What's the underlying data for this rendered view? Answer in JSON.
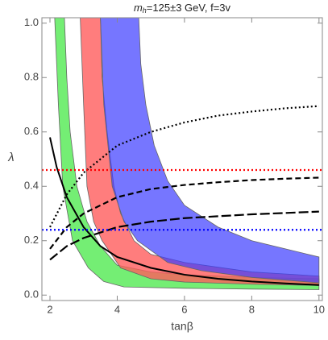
{
  "chart_data": {
    "type": "line",
    "title": {
      "symbol": "m",
      "subscript": "h",
      "text": "=125±3 GeV, f=3v"
    },
    "xlabel": "tanβ",
    "ylabel": "λ",
    "xlim": [
      1.76,
      10.1
    ],
    "ylim": [
      -0.02,
      1.02
    ],
    "xticks": [
      2,
      4,
      6,
      8,
      10
    ],
    "yticks": [
      {
        "value": 0,
        "label": "0.0"
      },
      {
        "value": 0.2,
        "label": "0.2"
      },
      {
        "value": 0.4,
        "label": "0.4"
      },
      {
        "value": 0.6,
        "label": "0.6"
      },
      {
        "value": 0.8,
        "label": "0.8"
      },
      {
        "value": 1.0,
        "label": "1.0"
      }
    ],
    "bands": [
      {
        "color": "#74ee74",
        "opacity": 1,
        "x": [
          2.14,
          2.25,
          2.38,
          2.67,
          3.14,
          3.6,
          4.2,
          6,
          8,
          10,
          10,
          8,
          6,
          5,
          4,
          3.5,
          3.1,
          2.8,
          2.6,
          2.5,
          2.43
        ],
        "y": [
          1.02,
          0.7,
          0.4,
          0.2,
          0.1,
          0.05,
          0.03,
          0.025,
          0.022,
          0.02,
          0.06,
          0.065,
          0.075,
          0.085,
          0.11,
          0.18,
          0.27,
          0.4,
          0.6,
          0.8,
          1.02
        ]
      },
      {
        "color": "#ff5c5c",
        "opacity": 0.8,
        "x": [
          2.9,
          3.0,
          3.1,
          3.3,
          3.55,
          4.1,
          5,
          6,
          8,
          10,
          10,
          8,
          6,
          5,
          4.5,
          4.1,
          3.9,
          3.7,
          3.55,
          3.5
        ],
        "y": [
          1.02,
          0.7,
          0.4,
          0.27,
          0.2,
          0.1,
          0.06,
          0.048,
          0.04,
          0.035,
          0.07,
          0.085,
          0.12,
          0.15,
          0.2,
          0.3,
          0.4,
          0.6,
          0.8,
          1.02
        ]
      },
      {
        "color": "#3c3cff",
        "opacity": 0.7,
        "x": [
          3.5,
          3.6,
          3.85,
          4.2,
          4.6,
          5.5,
          6.5,
          8,
          10,
          10,
          9,
          8,
          7,
          6,
          5.5,
          5.1,
          4.85,
          4.7,
          4.64
        ],
        "y": [
          1.02,
          0.7,
          0.4,
          0.27,
          0.2,
          0.12,
          0.09,
          0.065,
          0.045,
          0.14,
          0.17,
          0.2,
          0.25,
          0.33,
          0.42,
          0.55,
          0.7,
          0.85,
          1.02
        ]
      }
    ],
    "series": [
      {
        "color": "#000000",
        "style": "solid",
        "x": [
          2,
          2.2,
          2.5,
          3,
          3.5,
          4,
          5,
          6,
          7,
          8,
          9,
          10
        ],
        "values": [
          0.58,
          0.47,
          0.36,
          0.25,
          0.18,
          0.14,
          0.1,
          0.075,
          0.06,
          0.05,
          0.043,
          0.037
        ]
      },
      {
        "color": "#000000",
        "style": "dotted",
        "x": [
          2,
          2.5,
          3,
          4,
          5,
          6,
          7,
          8,
          9,
          10
        ],
        "values": [
          0.25,
          0.37,
          0.45,
          0.55,
          0.6,
          0.635,
          0.66,
          0.675,
          0.687,
          0.695
        ]
      },
      {
        "color": "#000000",
        "style": "dashed",
        "x": [
          2,
          2.5,
          3,
          4,
          5,
          6,
          7,
          8,
          9,
          10
        ],
        "values": [
          0.17,
          0.25,
          0.3,
          0.36,
          0.39,
          0.405,
          0.415,
          0.423,
          0.428,
          0.432
        ]
      },
      {
        "color": "#000000",
        "style": "longdash",
        "x": [
          2,
          2.5,
          3,
          4,
          5,
          6,
          7,
          8,
          9,
          10
        ],
        "values": [
          0.13,
          0.18,
          0.21,
          0.25,
          0.27,
          0.283,
          0.29,
          0.297,
          0.302,
          0.307
        ]
      },
      {
        "color": "#ff0000",
        "style": "dotted",
        "x": [
          1.76,
          10.1
        ],
        "values": [
          0.46,
          0.46
        ]
      },
      {
        "color": "#0000ff",
        "style": "dotted",
        "x": [
          1.76,
          10.1
        ],
        "values": [
          0.24,
          0.24
        ]
      }
    ]
  }
}
